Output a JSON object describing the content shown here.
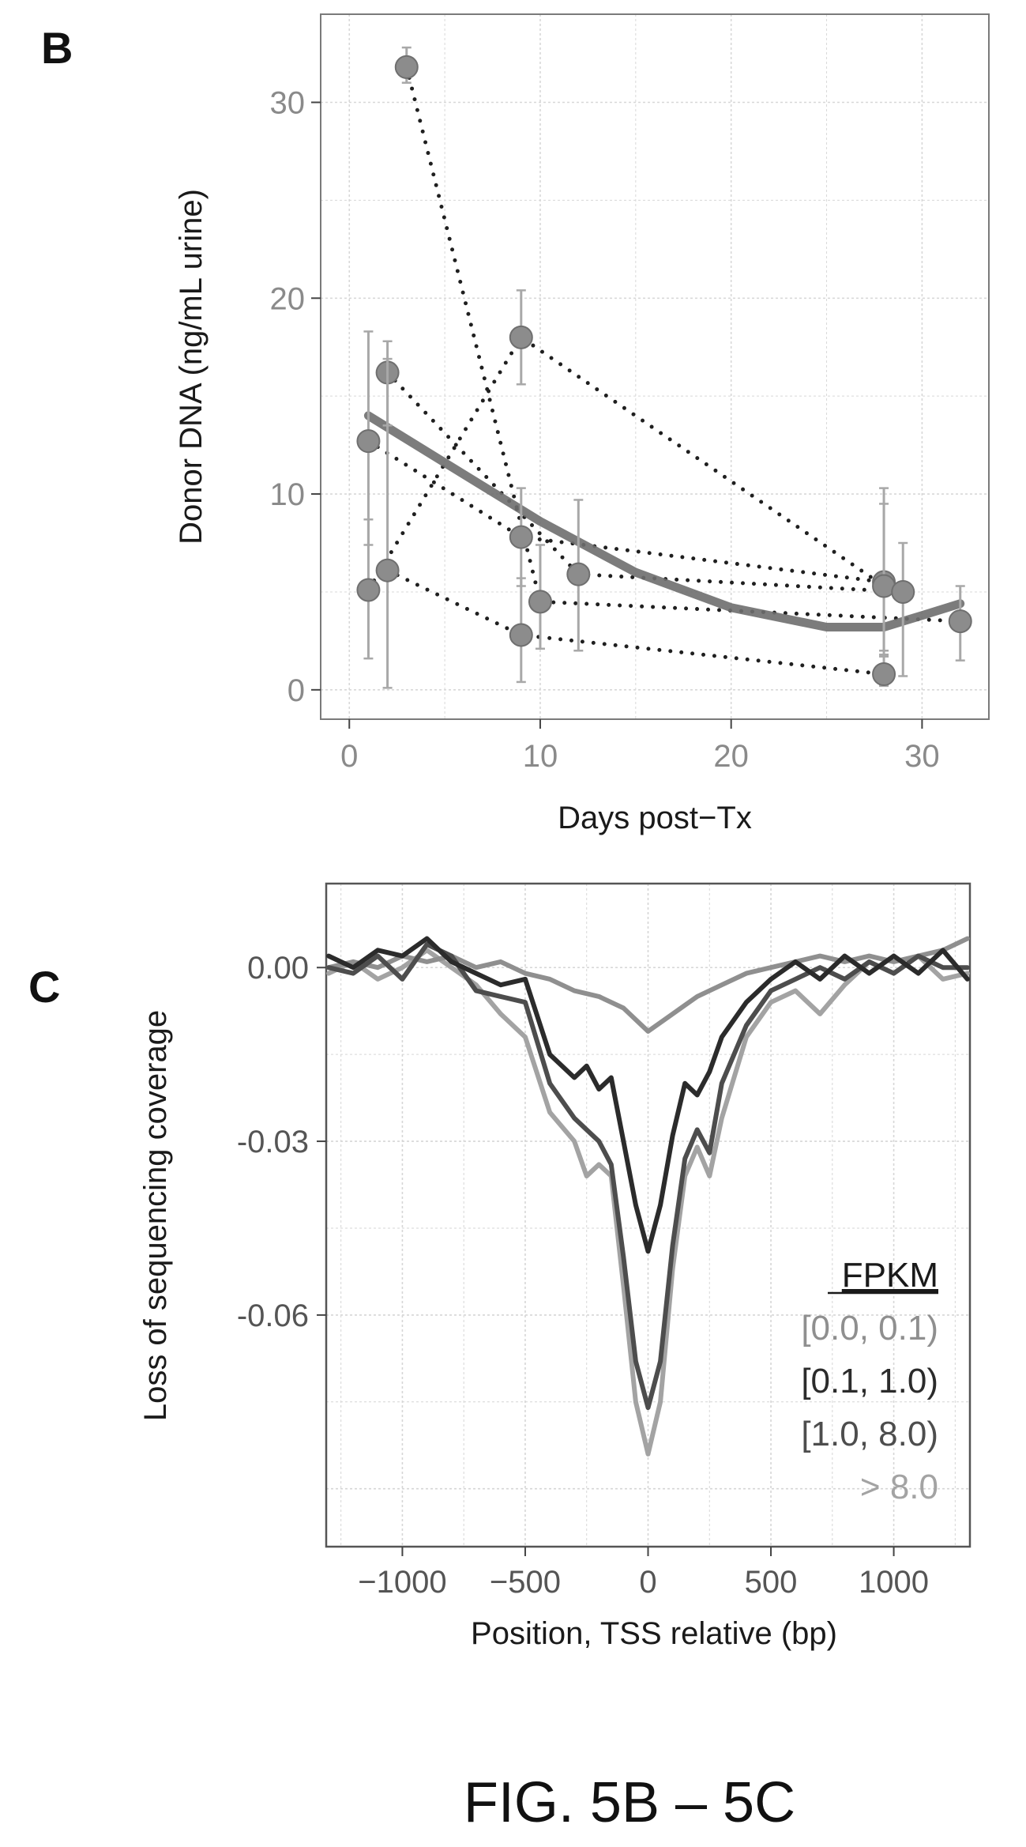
{
  "figure": {
    "panel_b_letter": "B",
    "panel_c_letter": "C",
    "caption": "FIG. 5B – 5C"
  },
  "chart_data": [
    {
      "type": "scatter",
      "panel": "B",
      "xlabel": "Days post−Tx",
      "ylabel": "Donor DNA (ng/mL urine)",
      "xlim": [
        -1.5,
        33.5
      ],
      "ylim": [
        -1.5,
        34.5
      ],
      "xticks": [
        0,
        10,
        20,
        30
      ],
      "yticks": [
        0,
        10,
        20,
        30
      ],
      "grid": true,
      "point_color": "#8c8c8c",
      "trend_color": "#6e6e6e",
      "series": [
        {
          "points": [
            {
              "x": 1,
              "y": 12.7,
              "lo": 7.4,
              "hi": 18.3
            },
            {
              "x": 9,
              "y": 7.8,
              "lo": 5.3,
              "hi": 10.3
            },
            {
              "x": 28,
              "y": 5.5,
              "lo": 1.7,
              "hi": 10.3
            }
          ]
        },
        {
          "points": [
            {
              "x": 1,
              "y": 5.1,
              "lo": 1.6,
              "hi": 8.7
            },
            {
              "x": 9,
              "y": 18.0,
              "lo": 15.6,
              "hi": 20.4
            },
            {
              "x": 28,
              "y": 5.3,
              "lo": 2.0,
              "hi": 9.5
            }
          ]
        },
        {
          "points": [
            {
              "x": 2,
              "y": 16.2,
              "lo": 13.5,
              "hi": 17.8
            },
            {
              "x": 12,
              "y": 5.9,
              "lo": 2.0,
              "hi": 9.7
            },
            {
              "x": 29,
              "y": 5.0,
              "lo": 0.7,
              "hi": 7.5
            }
          ]
        },
        {
          "points": [
            {
              "x": 2,
              "y": 6.1,
              "lo": 0.1,
              "hi": 16.9
            },
            {
              "x": 9,
              "y": 2.8,
              "lo": 0.4,
              "hi": 5.7
            },
            {
              "x": 28,
              "y": 0.8,
              "lo": 0.2,
              "hi": 1.8
            }
          ]
        },
        {
          "points": [
            {
              "x": 3,
              "y": 31.8,
              "lo": 31.0,
              "hi": 32.8
            },
            {
              "x": 10,
              "y": 4.5,
              "lo": 2.1,
              "hi": 7.4
            },
            {
              "x": 32,
              "y": 3.5,
              "lo": 1.5,
              "hi": 5.3
            }
          ]
        }
      ],
      "trend": {
        "x": [
          1,
          5,
          10,
          15,
          20,
          25,
          28,
          30,
          32
        ],
        "y": [
          14.0,
          11.6,
          8.6,
          6.0,
          4.2,
          3.2,
          3.2,
          3.8,
          4.4
        ]
      }
    },
    {
      "type": "line",
      "panel": "C",
      "xlabel": "Position, TSS relative (bp)",
      "ylabel": "Loss of sequencing coverage",
      "xlim": [
        -1310,
        1310
      ],
      "ylim": [
        -0.1,
        0.0145
      ],
      "xticks": [
        -1000,
        -500,
        0,
        500,
        1000
      ],
      "yticks": [
        0.0,
        -0.03,
        -0.06
      ],
      "ytick_labels": [
        "0.00",
        "-0.03",
        "-0.06"
      ],
      "grid": true,
      "legend": {
        "position": "bottom-right",
        "title": "FPKM"
      },
      "series": [
        {
          "name": "[0.0, 0.1)",
          "color": "#8f8f8f",
          "x": [
            -1300,
            -1200,
            -1100,
            -1000,
            -900,
            -800,
            -700,
            -600,
            -500,
            -400,
            -300,
            -200,
            -100,
            0,
            100,
            200,
            300,
            400,
            500,
            600,
            700,
            800,
            900,
            1000,
            1100,
            1200,
            1300
          ],
          "y": [
            0.0,
            0.001,
            0.0,
            0.002,
            0.001,
            0.002,
            0.0,
            0.001,
            -0.001,
            -0.002,
            -0.004,
            -0.005,
            -0.007,
            -0.011,
            -0.008,
            -0.005,
            -0.003,
            -0.001,
            0.0,
            0.001,
            0.002,
            0.001,
            0.002,
            0.001,
            0.002,
            0.003,
            0.005
          ]
        },
        {
          "name": "[0.1, 1.0)",
          "color": "#2b2b2b",
          "x": [
            -1300,
            -1200,
            -1100,
            -1000,
            -900,
            -800,
            -700,
            -600,
            -500,
            -400,
            -300,
            -250,
            -200,
            -150,
            -100,
            -50,
            0,
            50,
            100,
            150,
            200,
            250,
            300,
            400,
            500,
            600,
            700,
            800,
            900,
            1000,
            1100,
            1200,
            1300
          ],
          "y": [
            0.002,
            0.0,
            0.003,
            0.002,
            0.005,
            0.001,
            -0.001,
            -0.003,
            -0.002,
            -0.015,
            -0.019,
            -0.017,
            -0.021,
            -0.019,
            -0.03,
            -0.041,
            -0.049,
            -0.041,
            -0.029,
            -0.02,
            -0.022,
            -0.018,
            -0.012,
            -0.006,
            -0.002,
            0.001,
            -0.002,
            0.002,
            -0.001,
            0.002,
            -0.001,
            0.003,
            -0.002
          ]
        },
        {
          "name": "[1.0, 8.0)",
          "color": "#4d4d4d",
          "x": [
            -1300,
            -1200,
            -1100,
            -1000,
            -900,
            -800,
            -700,
            -600,
            -500,
            -400,
            -300,
            -250,
            -200,
            -150,
            -100,
            -50,
            0,
            50,
            100,
            150,
            200,
            250,
            300,
            400,
            500,
            600,
            700,
            800,
            900,
            1000,
            1100,
            1200,
            1300
          ],
          "y": [
            0.0,
            -0.001,
            0.002,
            -0.002,
            0.004,
            0.002,
            -0.004,
            -0.005,
            -0.006,
            -0.02,
            -0.026,
            -0.028,
            -0.03,
            -0.034,
            -0.05,
            -0.068,
            -0.076,
            -0.068,
            -0.048,
            -0.033,
            -0.028,
            -0.032,
            -0.02,
            -0.01,
            -0.004,
            -0.002,
            0.0,
            -0.002,
            0.001,
            -0.001,
            0.002,
            0.0,
            0.0
          ]
        },
        {
          "name": "> 8.0",
          "color": "#a3a3a3",
          "x": [
            -1300,
            -1200,
            -1100,
            -1000,
            -900,
            -800,
            -700,
            -600,
            -500,
            -400,
            -300,
            -250,
            -200,
            -150,
            -100,
            -50,
            0,
            50,
            100,
            150,
            200,
            250,
            300,
            400,
            500,
            600,
            700,
            800,
            900,
            1000,
            1100,
            1200,
            1300
          ],
          "y": [
            -0.001,
            0.001,
            -0.002,
            0.0,
            0.003,
            0.0,
            -0.003,
            -0.008,
            -0.012,
            -0.025,
            -0.03,
            -0.036,
            -0.034,
            -0.036,
            -0.055,
            -0.075,
            -0.084,
            -0.075,
            -0.052,
            -0.036,
            -0.031,
            -0.036,
            -0.026,
            -0.012,
            -0.006,
            -0.004,
            -0.008,
            -0.003,
            0.001,
            -0.001,
            0.002,
            -0.002,
            -0.001
          ]
        }
      ]
    }
  ]
}
